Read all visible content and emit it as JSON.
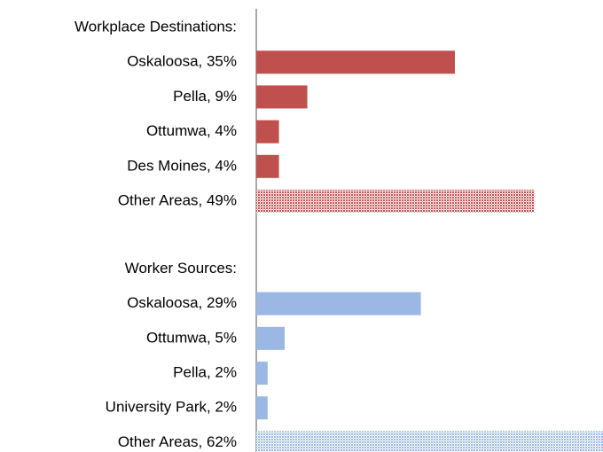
{
  "chart_data": {
    "type": "bar",
    "groups": [
      {
        "title": "Workplace Destinations:",
        "color": "#c0504d",
        "categories": [
          "Oskaloosa, 35%",
          "Pella, 9%",
          "Ottumwa, 4%",
          "Des Moines, 4%",
          "Other Areas, 49%"
        ],
        "values": [
          35,
          9,
          4,
          4,
          49
        ],
        "hatched": [
          false,
          false,
          false,
          false,
          true
        ]
      },
      {
        "title": "Worker Sources:",
        "color": "#9bb7e3",
        "categories": [
          "Oskaloosa, 29%",
          "Ottumwa, 5%",
          "Pella, 2%",
          "University Park, 2%",
          "Other Areas, 62%"
        ],
        "values": [
          29,
          5,
          2,
          2,
          62
        ],
        "hatched": [
          false,
          false,
          false,
          false,
          true
        ]
      }
    ]
  }
}
